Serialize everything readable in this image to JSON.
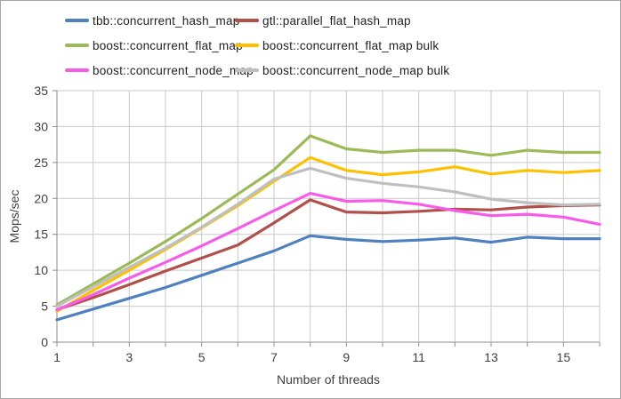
{
  "window": {
    "background": "#ffffff",
    "border_color": "#a6a6a6"
  },
  "chart_data": {
    "type": "line",
    "title": "",
    "xlabel": "Number of threads",
    "ylabel": "Mops/sec",
    "x": [
      1,
      2,
      3,
      4,
      5,
      6,
      7,
      8,
      9,
      10,
      11,
      12,
      13,
      14,
      15,
      16
    ],
    "xlim": [
      1,
      16
    ],
    "ylim": [
      0,
      35
    ],
    "ytick_step": 5,
    "yticks": [
      0,
      5,
      10,
      15,
      20,
      25,
      30,
      35
    ],
    "xticks_labeled": [
      1,
      3,
      5,
      7,
      9,
      11,
      13,
      15
    ],
    "grid": true,
    "legend_position": "top",
    "grid_color": "#c9c9c9",
    "axis_color": "#8c8c8c",
    "text_color": "#3f3f3f",
    "series": [
      {
        "name": "tbb::concurrent_hash_map",
        "color": "#4e81bd",
        "values": [
          3.1,
          4.6,
          6.1,
          7.6,
          9.3,
          11.0,
          12.7,
          14.8,
          14.3,
          14.0,
          14.2,
          14.5,
          13.9,
          14.6,
          14.4,
          14.4
        ]
      },
      {
        "name": "gtl::parallel_flat_hash_map",
        "color": "#b14f4a",
        "values": [
          4.5,
          6.2,
          8.0,
          9.9,
          11.7,
          13.5,
          16.6,
          19.8,
          18.1,
          18.0,
          18.2,
          18.5,
          18.4,
          18.8,
          19.0,
          19.1
        ]
      },
      {
        "name": "boost::concurrent_flat_map",
        "color": "#9bbb59",
        "values": [
          5.2,
          8.1,
          11.0,
          14.0,
          17.2,
          20.6,
          24.0,
          28.7,
          26.9,
          26.4,
          26.7,
          26.7,
          26.0,
          26.7,
          26.4,
          26.4
        ]
      },
      {
        "name": "boost::concurrent_flat_map bulk",
        "color": "#ffc000",
        "values": [
          4.3,
          7.2,
          10.0,
          12.9,
          15.9,
          19.0,
          22.4,
          25.7,
          23.9,
          23.3,
          23.7,
          24.4,
          23.4,
          23.9,
          23.6,
          23.9
        ]
      },
      {
        "name": "boost::concurrent_node_map",
        "color": "#f75be8",
        "values": [
          4.5,
          6.6,
          8.9,
          11.1,
          13.4,
          15.8,
          18.3,
          20.7,
          19.6,
          19.7,
          19.2,
          18.3,
          17.6,
          17.8,
          17.4,
          16.4
        ]
      },
      {
        "name": "boost::concurrent_node_map bulk",
        "color": "#bfbfbf",
        "values": [
          5.0,
          7.7,
          10.4,
          13.1,
          16.0,
          19.2,
          22.7,
          24.2,
          22.8,
          22.1,
          21.6,
          20.9,
          19.9,
          19.4,
          19.1,
          19.2
        ]
      }
    ]
  }
}
